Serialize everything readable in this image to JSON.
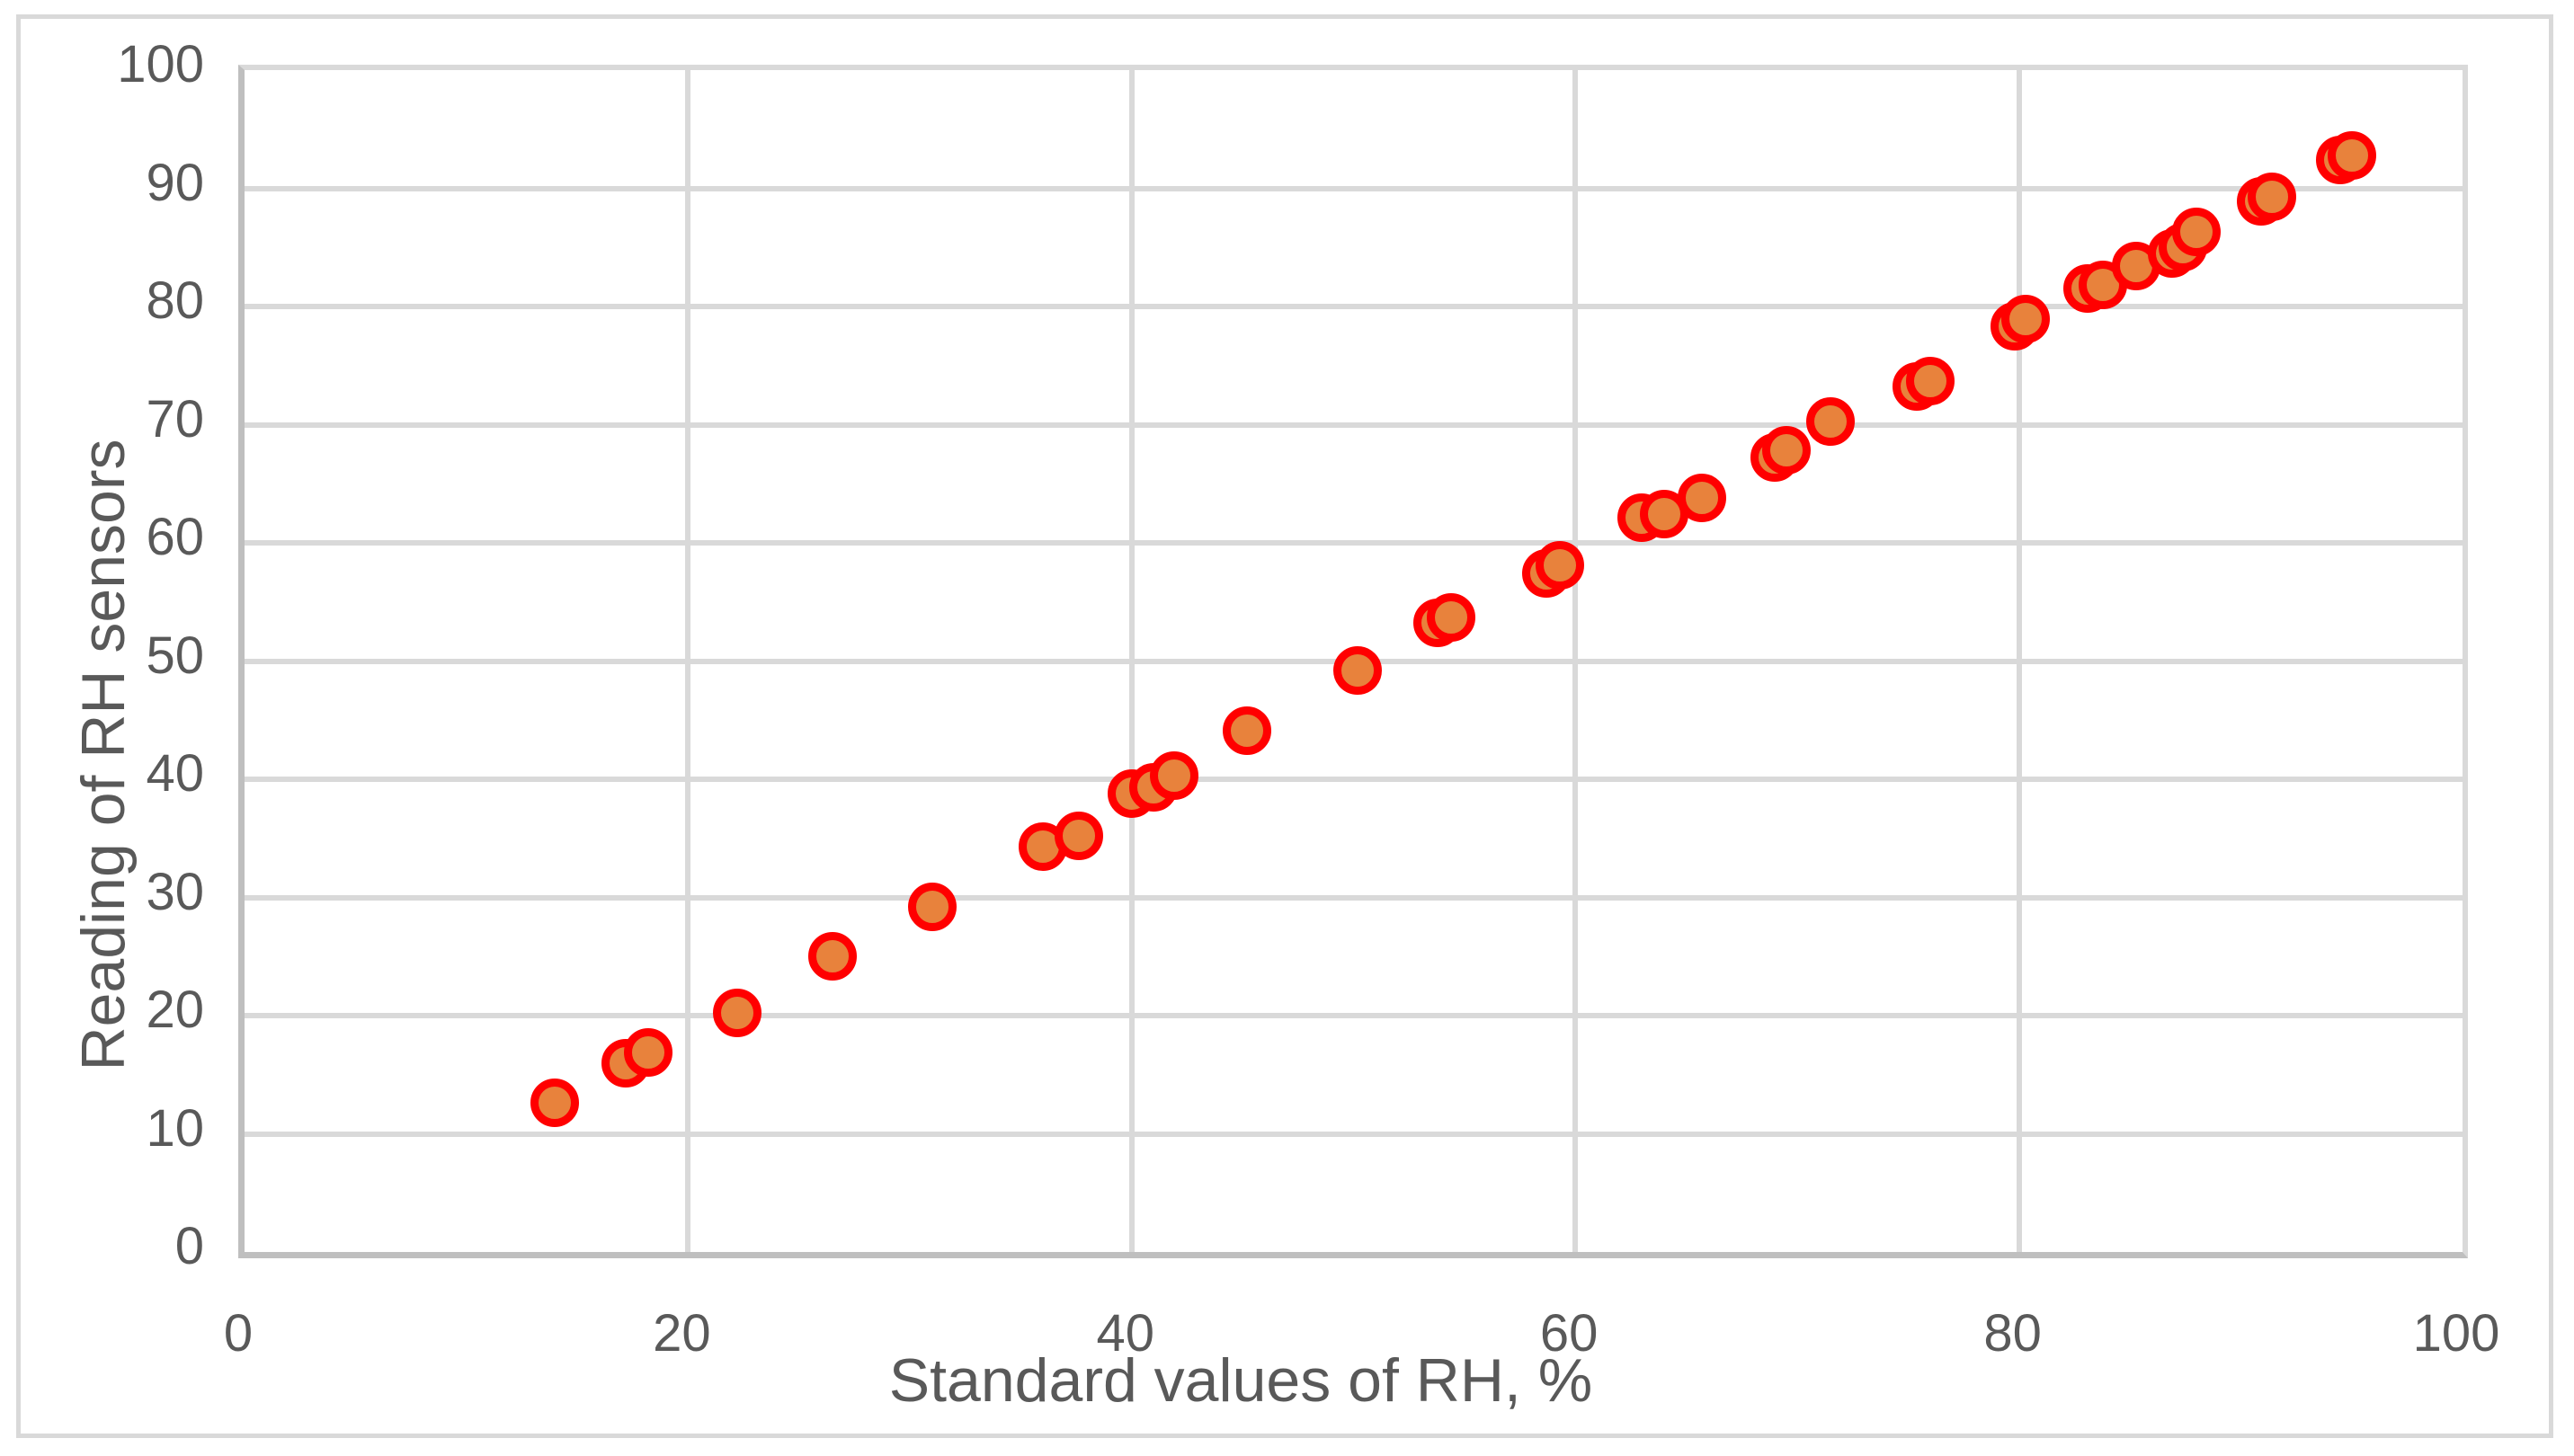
{
  "chart_data": {
    "type": "scatter",
    "title": "",
    "xlabel": "Standard values of RH, %",
    "ylabel": "Reading of RH sensors",
    "xlim": [
      0,
      100
    ],
    "ylim": [
      0,
      100
    ],
    "x_ticks": [
      0,
      20,
      40,
      60,
      80,
      100
    ],
    "y_ticks": [
      0,
      10,
      20,
      30,
      40,
      50,
      60,
      70,
      80,
      90,
      100
    ],
    "grid": true,
    "legend": "none",
    "series": [
      {
        "name": "RH sensor readings",
        "marker_shape": "circle",
        "marker_fill": "#e8823c",
        "marker_stroke": "#ff0000",
        "points": [
          [
            14.0,
            12.6
          ],
          [
            17.2,
            16.0
          ],
          [
            18.2,
            16.9
          ],
          [
            22.2,
            20.2
          ],
          [
            26.5,
            25.0
          ],
          [
            31.0,
            29.2
          ],
          [
            36.0,
            34.3
          ],
          [
            37.6,
            35.2
          ],
          [
            40.0,
            38.8
          ],
          [
            41.0,
            39.3
          ],
          [
            41.9,
            40.3
          ],
          [
            45.2,
            44.1
          ],
          [
            50.2,
            49.2
          ],
          [
            53.8,
            53.2
          ],
          [
            54.4,
            53.7
          ],
          [
            58.7,
            57.4
          ],
          [
            59.3,
            58.1
          ],
          [
            63.0,
            62.1
          ],
          [
            64.0,
            62.4
          ],
          [
            65.7,
            63.8
          ],
          [
            69.0,
            67.2
          ],
          [
            69.5,
            67.8
          ],
          [
            71.5,
            70.3
          ],
          [
            75.4,
            73.2
          ],
          [
            76.0,
            73.7
          ],
          [
            79.8,
            78.3
          ],
          [
            80.3,
            78.9
          ],
          [
            83.1,
            81.5
          ],
          [
            83.8,
            81.8
          ],
          [
            85.3,
            83.4
          ],
          [
            86.9,
            84.5
          ],
          [
            87.4,
            85.0
          ],
          [
            88.0,
            86.3
          ],
          [
            90.9,
            88.9
          ],
          [
            91.4,
            89.3
          ],
          [
            94.5,
            92.4
          ],
          [
            95.0,
            92.8
          ]
        ]
      }
    ]
  },
  "colors": {
    "marker_fill": "#e8823c",
    "marker_stroke": "#ff0000",
    "gridline": "#d9d9d9",
    "axis_line": "#bfbfbf",
    "text": "#595959",
    "background": "#ffffff"
  }
}
